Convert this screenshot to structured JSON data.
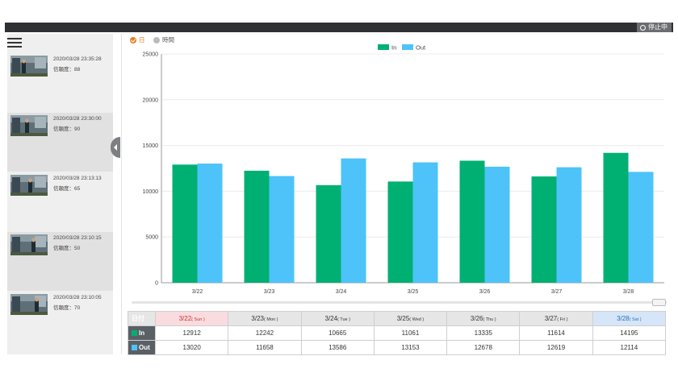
{
  "status": {
    "label": "停止中"
  },
  "sidebar": {
    "items": [
      {
        "time": "2020/03/28 23:35:28",
        "confidence": "信頼度：88"
      },
      {
        "time": "2020/03/28 23:30:00",
        "confidence": "信頼度：90"
      },
      {
        "time": "2020/03/28 23:13:13",
        "confidence": "信頼度：65"
      },
      {
        "time": "2020/03/28 23:10:15",
        "confidence": "信頼度：50"
      },
      {
        "time": "2020/03/28 23:10:05",
        "confidence": "信頼度：70"
      }
    ]
  },
  "view_toggle": {
    "day": "日",
    "hour": "時間",
    "selected": "day"
  },
  "colors": {
    "in": "#00b073",
    "out": "#4dc3f9",
    "accent": "#e67e22"
  },
  "chart_data": {
    "type": "bar",
    "categories": [
      "3/22",
      "3/23",
      "3/24",
      "3/25",
      "3/26",
      "3/27",
      "3/28"
    ],
    "series": [
      {
        "name": "In",
        "values": [
          12912,
          12242,
          10665,
          11061,
          13335,
          11614,
          14195
        ]
      },
      {
        "name": "Out",
        "values": [
          13020,
          11658,
          13586,
          13153,
          12678,
          12619,
          12114
        ]
      }
    ],
    "yticks": [
      "0",
      "5000",
      "10000",
      "15000",
      "20000",
      "25000"
    ],
    "ylim": [
      0,
      25000
    ],
    "legend": "top-center",
    "grid": true
  },
  "table": {
    "header_label": "日付",
    "in_label": "In",
    "out_label": "Out",
    "days": [
      {
        "date": "3/22",
        "dow": "( Sun )"
      },
      {
        "date": "3/23",
        "dow": "( Mon )"
      },
      {
        "date": "3/24",
        "dow": "( Tue )"
      },
      {
        "date": "3/25",
        "dow": "( Wed )"
      },
      {
        "date": "3/26",
        "dow": "( Thu )"
      },
      {
        "date": "3/27",
        "dow": "( Fri )"
      },
      {
        "date": "3/28",
        "dow": "( Sat )"
      }
    ],
    "in_values": [
      "12912",
      "12242",
      "10665",
      "11061",
      "13335",
      "11614",
      "14195"
    ],
    "out_values": [
      "13020",
      "11658",
      "13586",
      "13153",
      "12678",
      "12619",
      "12114"
    ]
  }
}
